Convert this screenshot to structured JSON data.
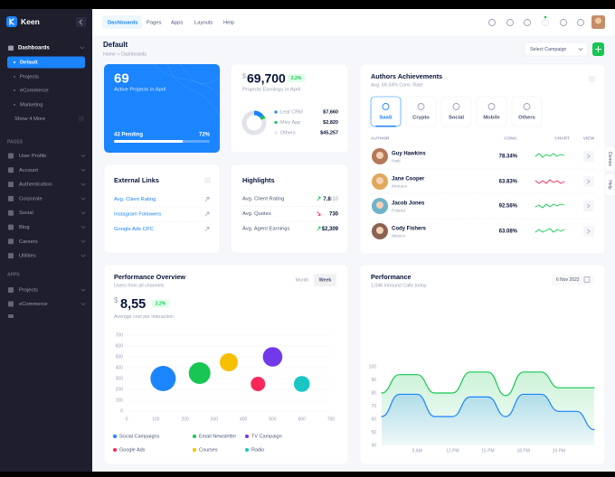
{
  "sidebar": {
    "brand": "Keen",
    "dashboards": {
      "title": "Dashboards",
      "items": [
        "Default",
        "Projects",
        "eCommerce",
        "Marketing"
      ],
      "more": "Show 4 More"
    },
    "pages": {
      "heading": "PAGES",
      "items": [
        "User Profile",
        "Account",
        "Authentication",
        "Corporate",
        "Social",
        "Blog",
        "Careers",
        "Utilities"
      ]
    },
    "apps": {
      "heading": "APPS",
      "items": [
        "Projects",
        "eCommerce"
      ]
    }
  },
  "topnav": [
    "Dashboards",
    "Pages",
    "Apps",
    "Layouts",
    "Help"
  ],
  "header": {
    "title": "Default",
    "breadcrumb": [
      "Home",
      "Dashboards"
    ],
    "select": "Select Campaign"
  },
  "side_tabs": [
    "Demos",
    "Help"
  ],
  "projects_card": {
    "count": 69,
    "label": "Active Projects in April",
    "pending": "43 Pending",
    "progress": {
      "value": 72,
      "label": "72%"
    }
  },
  "earnings_card": {
    "currency": "$",
    "amount": "69,700",
    "change": "2.2%",
    "label": "Projects Earnings in April"
  },
  "authors": {
    "title": "Authors Achievements",
    "subtitle": "Avg. 69.34% Conv. Rate",
    "tabs": [
      "SaaS",
      "Crypto",
      "Social",
      "Mobile",
      "Others"
    ],
    "columns": [
      "AUTHOR",
      "CONV.",
      "CHART",
      "VIEW"
    ],
    "rows": [
      {
        "name": "Guy Hawkins",
        "country": "Haiti",
        "conv": "78.34%"
      },
      {
        "name": "Jane Cooper",
        "country": "Monaco",
        "conv": "63.83%"
      },
      {
        "name": "Jacob Jones",
        "country": "Poland",
        "conv": "92.56%"
      },
      {
        "name": "Cody Fishers",
        "country": "Mexico",
        "conv": "63.08%"
      }
    ]
  },
  "external_links": {
    "title": "External Links",
    "items": [
      "Avg. Client Rating",
      "Instagram Followers",
      "Google Ads CPC"
    ]
  },
  "highlights": {
    "title": "Highlights",
    "rows": [
      {
        "label": "Avg. Client Rating",
        "value": "7.8",
        "suffix": "/10"
      },
      {
        "label": "Avg. Quotes",
        "value": "730"
      },
      {
        "label": "Avg. Agent Earnings",
        "value": "$2,309"
      }
    ]
  },
  "performance_overview": {
    "title": "Performance Overview",
    "subtitle": "Users from all channels",
    "tabs": [
      "Month",
      "Week"
    ],
    "currency": "$",
    "amount": "8,55",
    "change": "2.2%",
    "note": "Average cost per interaction"
  },
  "performance": {
    "title": "Performance",
    "subtitle": "1,046 Inbound Calls today",
    "date": "6 Nov 2022"
  },
  "chart_data": [
    {
      "type": "bubble",
      "xlim": [
        0,
        700
      ],
      "ylim": [
        0,
        700
      ],
      "xticks": [
        0,
        100,
        200,
        300,
        400,
        500,
        600,
        700
      ],
      "yticks": [
        0,
        100,
        200,
        300,
        400,
        500,
        600,
        700
      ],
      "grid": true,
      "series": [
        {
          "name": "Social Campaigns",
          "color": "#1b84ff",
          "x": [
            125
          ],
          "values": [
            300
          ],
          "sizes": [
            35
          ]
        },
        {
          "name": "Email Newsletter",
          "color": "#17c653",
          "x": [
            250
          ],
          "values": [
            350
          ],
          "sizes": [
            30
          ]
        },
        {
          "name": "TV Campaign",
          "color": "#7239ea",
          "x": [
            500
          ],
          "values": [
            500
          ],
          "sizes": [
            27
          ]
        },
        {
          "name": "Google Ads",
          "color": "#f8285a",
          "x": [
            450
          ],
          "values": [
            250
          ],
          "sizes": [
            20
          ]
        },
        {
          "name": "Courses",
          "color": "#f6c000",
          "x": [
            350
          ],
          "values": [
            450
          ],
          "sizes": [
            25
          ]
        },
        {
          "name": "Radio",
          "color": "#1ac6c4",
          "x": [
            600
          ],
          "values": [
            250
          ],
          "sizes": [
            22
          ]
        }
      ]
    },
    {
      "type": "line",
      "categories": [
        null,
        null,
        "9 AM",
        null,
        "12 PM",
        null,
        "15 PM",
        null,
        "18 PM",
        null,
        "19 PM",
        null,
        null
      ],
      "ylim": [
        40,
        100
      ],
      "yticks": [
        40,
        50,
        60,
        70,
        80,
        90,
        100
      ],
      "grid": false,
      "series": [
        {
          "color": "#17c653",
          "values": [
            80,
            94,
            94,
            80,
            80,
            96,
            96,
            78,
            96,
            96,
            84,
            84,
            84
          ]
        },
        {
          "color": "#1b84ff",
          "values": [
            62,
            79,
            79,
            62,
            62,
            77,
            77,
            62,
            79,
            79,
            66,
            66,
            52
          ]
        }
      ]
    },
    {
      "type": "pie",
      "categories": [
        "Leaf CRM",
        "Mivy App",
        "Others"
      ],
      "values": [
        7660,
        2820,
        45257
      ],
      "value_labels": [
        "$7,660",
        "$2,820",
        "$45,257"
      ],
      "colors": [
        "#1b84ff",
        "#17c653",
        "#e1e3ea"
      ]
    }
  ]
}
